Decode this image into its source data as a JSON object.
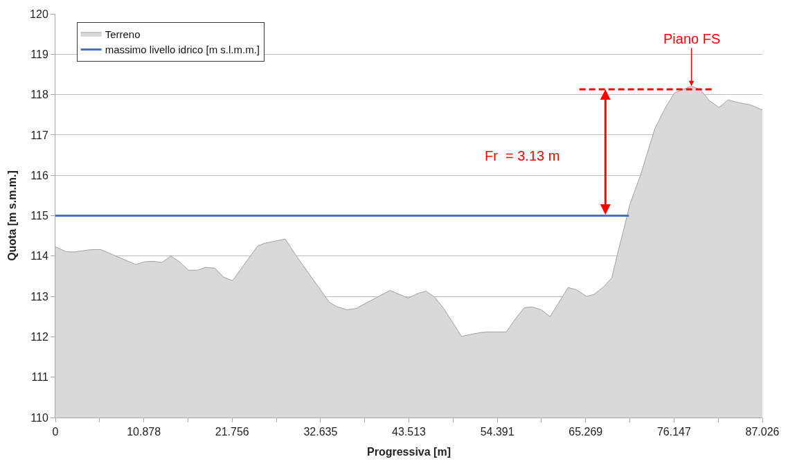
{
  "chart_data": {
    "type": "area",
    "xlabel": "Progressiva [m]",
    "ylabel": "Quota [m s.m.m.]",
    "xlim": [
      0,
      87.026
    ],
    "ylim": [
      110,
      120
    ],
    "xticks": [
      0,
      {
        "value": 5.439,
        "label": null
      },
      10.878,
      {
        "value": 16.317,
        "label": null
      },
      21.756,
      {
        "value": 27.195,
        "label": null
      },
      32.635,
      {
        "value": 38.074,
        "label": null
      },
      43.513,
      {
        "value": 48.952,
        "label": null
      },
      54.391,
      {
        "value": 59.83,
        "label": null
      },
      65.269,
      {
        "value": 70.708,
        "label": null
      },
      76.147,
      {
        "value": 81.587,
        "label": null
      },
      87.026
    ],
    "yticks": [
      110,
      111,
      112,
      113,
      114,
      115,
      116,
      117,
      118,
      119,
      120
    ],
    "grid": "y",
    "legend": "top left",
    "series": [
      {
        "name": "Terreno",
        "color": "#d9d9d9",
        "x": [
          0,
          1.3,
          2.3,
          4.4,
          5.6,
          7.0,
          9.9,
          11.0,
          12.1,
          13.1,
          14.2,
          15.2,
          16.4,
          17.5,
          18.5,
          19.6,
          20.7,
          21.8,
          24.9,
          25.8,
          28.3,
          29.7,
          33.7,
          34.6,
          35.9,
          37.0,
          38.1,
          41.2,
          43.4,
          44.7,
          45.6,
          46.7,
          47.8,
          50.0,
          50.9,
          52.2,
          53.1,
          54.4,
          55.5,
          56.5,
          57.7,
          58.7,
          59.8,
          60.9,
          63.1,
          64.1,
          65.4,
          66.3,
          67.5,
          68.5,
          69.2,
          69.9,
          70.7,
          72.0,
          73.8,
          75.1,
          76.2,
          78.3,
          79.4,
          80.5,
          81.7,
          82.8,
          84.1,
          85.5,
          87.026
        ],
        "values": [
          114.23,
          114.11,
          114.1,
          114.16,
          114.16,
          114.04,
          113.79,
          113.86,
          113.87,
          113.84,
          114.0,
          113.87,
          113.65,
          113.65,
          113.72,
          113.7,
          113.48,
          113.39,
          114.25,
          114.32,
          114.42,
          113.99,
          112.86,
          112.75,
          112.67,
          112.7,
          112.82,
          113.15,
          112.96,
          113.08,
          113.13,
          112.98,
          112.7,
          112.01,
          112.05,
          112.1,
          112.12,
          112.12,
          112.12,
          112.41,
          112.72,
          112.74,
          112.67,
          112.5,
          113.22,
          113.17,
          113.0,
          113.05,
          113.24,
          113.46,
          114.06,
          114.61,
          115.27,
          115.99,
          117.16,
          117.68,
          118.04,
          118.21,
          118.12,
          117.85,
          117.68,
          117.87,
          117.8,
          117.75,
          117.62
        ]
      },
      {
        "name": "massimo livello idrico [m s.l.m.m.]",
        "type": "line",
        "color": "#4472c4",
        "x": [
          0,
          70.6
        ],
        "values": [
          115,
          115
        ]
      },
      {
        "type": "line",
        "color": "#ff0000",
        "line_style": "dashed",
        "x": [
          64.5,
          81.1
        ],
        "values": [
          118.13,
          118.13
        ]
      }
    ],
    "annotations": [
      "Fr  = 3.13 m",
      {
        "text": "Piano FS",
        "x": 78.3,
        "y": 118.21
      }
    ]
  }
}
